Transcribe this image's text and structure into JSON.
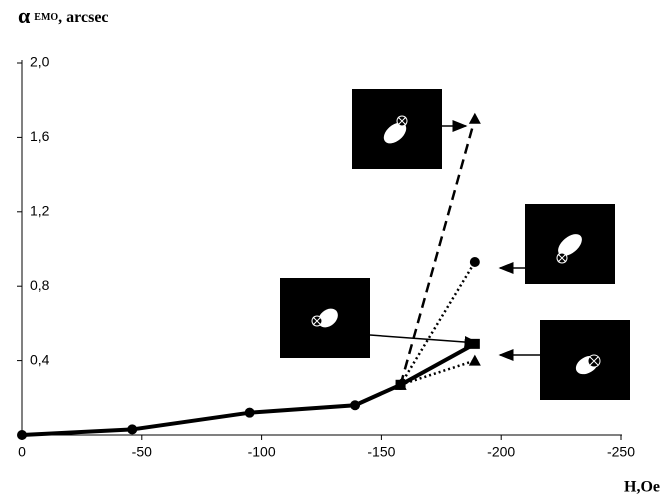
{
  "chart_data": {
    "type": "line",
    "ylabel": "α",
    "ylabel_sub": "EMO",
    "ylabel_suffix": ", arcsec",
    "xlabel": "H,Oe",
    "xlim": [
      0,
      -250
    ],
    "xticks": [
      0,
      -50,
      -100,
      -150,
      -200,
      -250
    ],
    "ylim": [
      0,
      2.0
    ],
    "yticks": [
      {
        "value": 0.4,
        "label": "0,4"
      },
      {
        "value": 0.8,
        "label": "0,8"
      },
      {
        "value": 1.2,
        "label": "1,2"
      },
      {
        "value": 1.6,
        "label": "1,6"
      },
      {
        "value": 2.0,
        "label": "2,0"
      }
    ],
    "series": [
      {
        "color": "#000000",
        "linestyle": "solid",
        "marker": "circle",
        "x": [
          0,
          -46,
          -95,
          -139,
          -158
        ],
        "values": [
          0,
          0.03,
          0.12,
          0.16,
          0.27
        ]
      },
      {
        "color": "#000000",
        "linestyle": "solid",
        "marker": "square",
        "x": [
          -158,
          -189
        ],
        "values": [
          0.27,
          0.49
        ]
      },
      {
        "color": "#000000",
        "linestyle": "dashed",
        "marker": "triangle",
        "x": [
          -158,
          -189
        ],
        "values": [
          0.27,
          1.7
        ]
      },
      {
        "color": "#000000",
        "linestyle": "dotted",
        "marker": "circle",
        "x": [
          -158,
          -189
        ],
        "values": [
          0.27,
          0.93
        ]
      },
      {
        "color": "#000000",
        "linestyle": "dotted",
        "marker": "triangle",
        "x": [
          -158,
          -189
        ],
        "values": [
          0.27,
          0.4
        ]
      }
    ]
  }
}
